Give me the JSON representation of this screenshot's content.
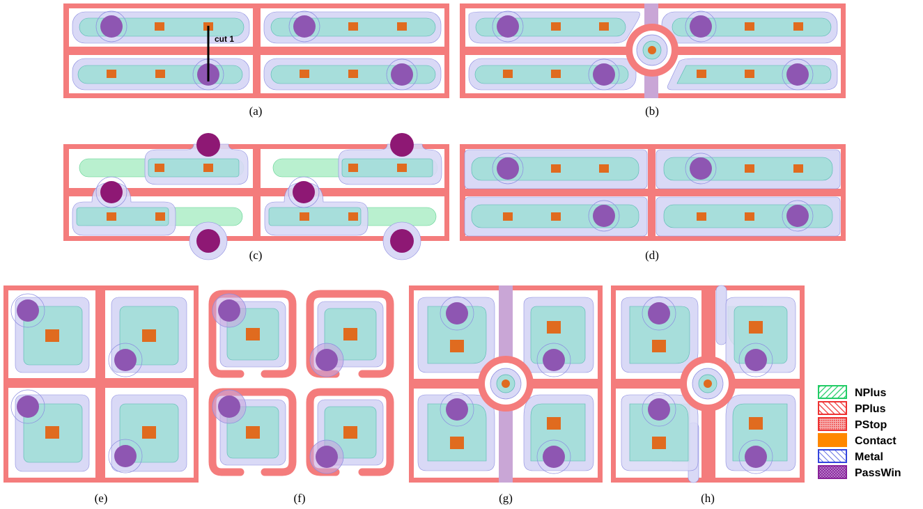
{
  "captions": {
    "a": "(a)",
    "b": "(b)",
    "c": "(c)",
    "d": "(d)",
    "e": "(e)",
    "f": "(f)",
    "g": "(g)",
    "h": "(h)"
  },
  "annotation": {
    "cut_label": "cut 1"
  },
  "legend": [
    {
      "label": "NPlus",
      "color": "#22cc66",
      "pattern": "hatch-green"
    },
    {
      "label": "PPlus",
      "color": "#ee3333",
      "pattern": "hatch-red"
    },
    {
      "label": "PStop",
      "color": "#ee3333",
      "pattern": "dots-red"
    },
    {
      "label": "Contact",
      "color": "#ff8800",
      "pattern": "solid-orange"
    },
    {
      "label": "Metal",
      "color": "#3344dd",
      "pattern": "hatch-blue"
    },
    {
      "label": "PassWin",
      "color": "#882299",
      "pattern": "cross-purple"
    }
  ],
  "colors": {
    "pstop": "#f47c7c",
    "metal": "#d9d9f6",
    "pplus_active": "#a7dedb",
    "nplus_active": "#b9f0cf",
    "contact": "#e06b1f",
    "passwin": "#8e56b2",
    "passwin_dark": "#8e1874"
  }
}
